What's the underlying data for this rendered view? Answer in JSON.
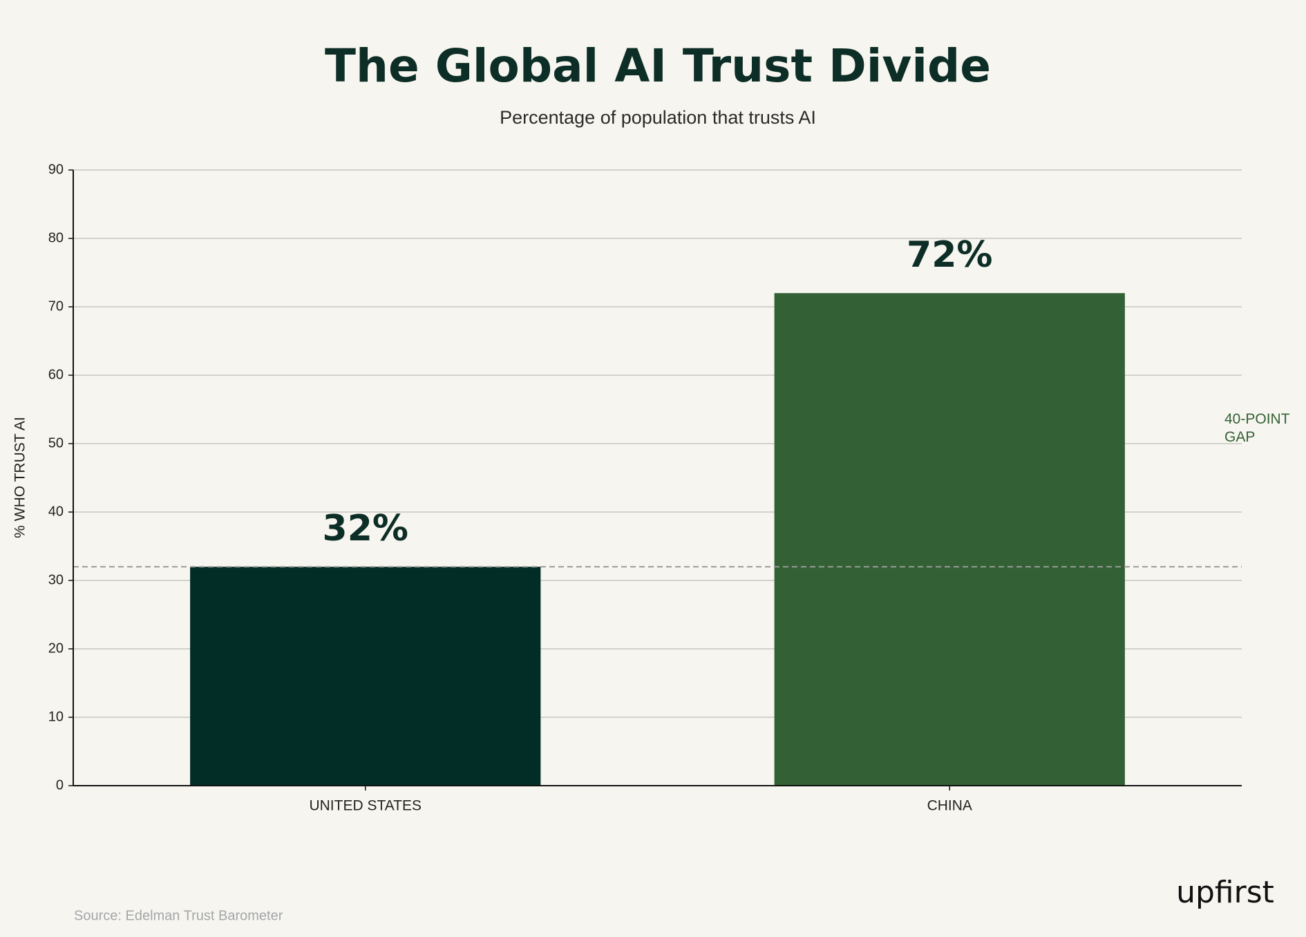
{
  "chart_data": {
    "type": "bar",
    "title": "The Global AI Trust Divide",
    "subtitle": "Percentage of population that trusts AI",
    "y_label": "% WHO TRUST AI",
    "categories": [
      "UNITED STATES",
      "CHINA"
    ],
    "values": [
      32,
      72
    ],
    "value_labels": [
      "32%",
      "72%"
    ],
    "colors": [
      "#022d27",
      "#336135"
    ],
    "ylim": [
      0,
      90
    ],
    "yticks": [
      0,
      10,
      20,
      30,
      40,
      50,
      60,
      70,
      80,
      90
    ],
    "grid": true,
    "reference_line": 32,
    "annotation": "40-POINT GAP",
    "source": "Source: Edelman Trust Barometer",
    "logo": "upfirst"
  }
}
